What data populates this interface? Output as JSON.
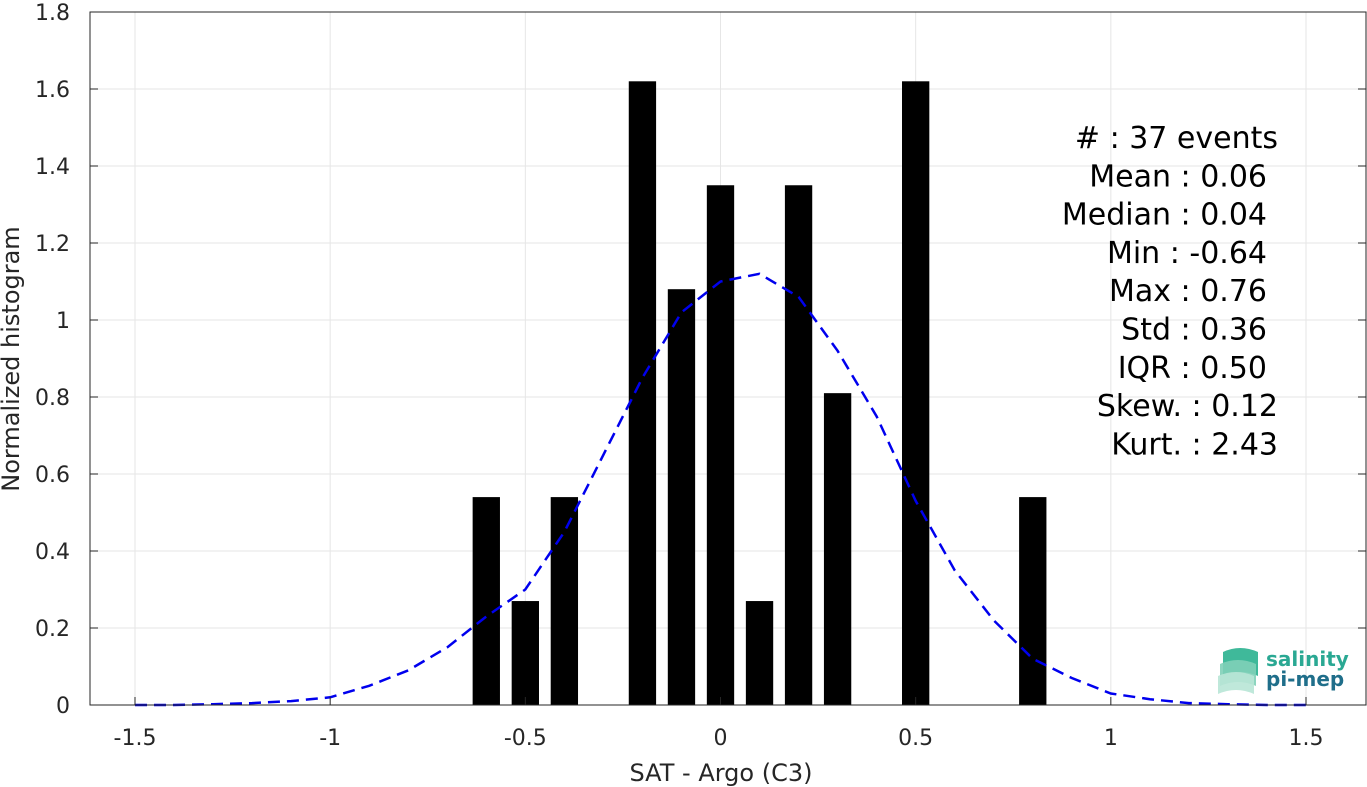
{
  "chart_data": {
    "type": "bar",
    "title": "",
    "xlabel": "SAT - Argo (C3)",
    "ylabel": "Normalized histogram",
    "xlim": [
      -1.5,
      1.5
    ],
    "ylim": [
      0,
      1.8
    ],
    "xticks": [
      -1.5,
      -1,
      -0.5,
      0,
      0.5,
      1,
      1.5
    ],
    "xtick_labels": [
      "-1.5",
      "-1",
      "-0.5",
      "0",
      "0.5",
      "1",
      "1.5"
    ],
    "yticks": [
      0,
      0.2,
      0.4,
      0.6,
      0.8,
      1,
      1.2,
      1.4,
      1.6,
      1.8
    ],
    "ytick_labels": [
      "0",
      "0.2",
      "0.4",
      "0.6",
      "0.8",
      "1",
      "1.2",
      "1.4",
      "1.6",
      "1.8"
    ],
    "grid": true,
    "bar_color": "#000000",
    "bar_width": 0.07,
    "bars": {
      "x": [
        -0.6,
        -0.5,
        -0.4,
        -0.2,
        -0.1,
        0.0,
        0.1,
        0.2,
        0.3,
        0.5,
        0.8
      ],
      "values": [
        0.54,
        0.27,
        0.54,
        1.62,
        1.08,
        1.35,
        0.27,
        1.35,
        0.81,
        1.62,
        0.54
      ]
    },
    "fit_curve": {
      "style": "dashed",
      "color": "#0000ee",
      "x": [
        -1.5,
        -1.4,
        -1.3,
        -1.2,
        -1.1,
        -1.0,
        -0.9,
        -0.8,
        -0.7,
        -0.6,
        -0.5,
        -0.4,
        -0.3,
        -0.2,
        -0.1,
        0.0,
        0.1,
        0.2,
        0.3,
        0.4,
        0.5,
        0.6,
        0.7,
        0.8,
        0.9,
        1.0,
        1.1,
        1.2,
        1.3,
        1.4,
        1.5
      ],
      "y": [
        0.0,
        0.0,
        0.002,
        0.005,
        0.01,
        0.02,
        0.05,
        0.09,
        0.15,
        0.23,
        0.3,
        0.45,
        0.65,
        0.85,
        1.02,
        1.1,
        1.12,
        1.06,
        0.92,
        0.75,
        0.53,
        0.35,
        0.22,
        0.12,
        0.07,
        0.03,
        0.015,
        0.005,
        0.002,
        0.0,
        0.0
      ]
    },
    "stats": [
      {
        "label": "#  : 37 events",
        "anchor": 1278
      },
      {
        "label": "Mean : 0.06",
        "anchor": 1267
      },
      {
        "label": "Median : 0.04",
        "anchor": 1267
      },
      {
        "label": "Min : -0.64",
        "anchor": 1267
      },
      {
        "label": "Max : 0.76",
        "anchor": 1267
      },
      {
        "label": "Std : 0.36",
        "anchor": 1267
      },
      {
        "label": "IQR : 0.50",
        "anchor": 1267
      },
      {
        "label": "Skew. : 0.12",
        "anchor": 1278
      },
      {
        "label": "Kurt. : 2.43",
        "anchor": 1278
      }
    ]
  },
  "logo": {
    "line1": "salinity",
    "line2": "pi-mep",
    "color1": "#2aa893",
    "color2": "#1f6e8a"
  }
}
